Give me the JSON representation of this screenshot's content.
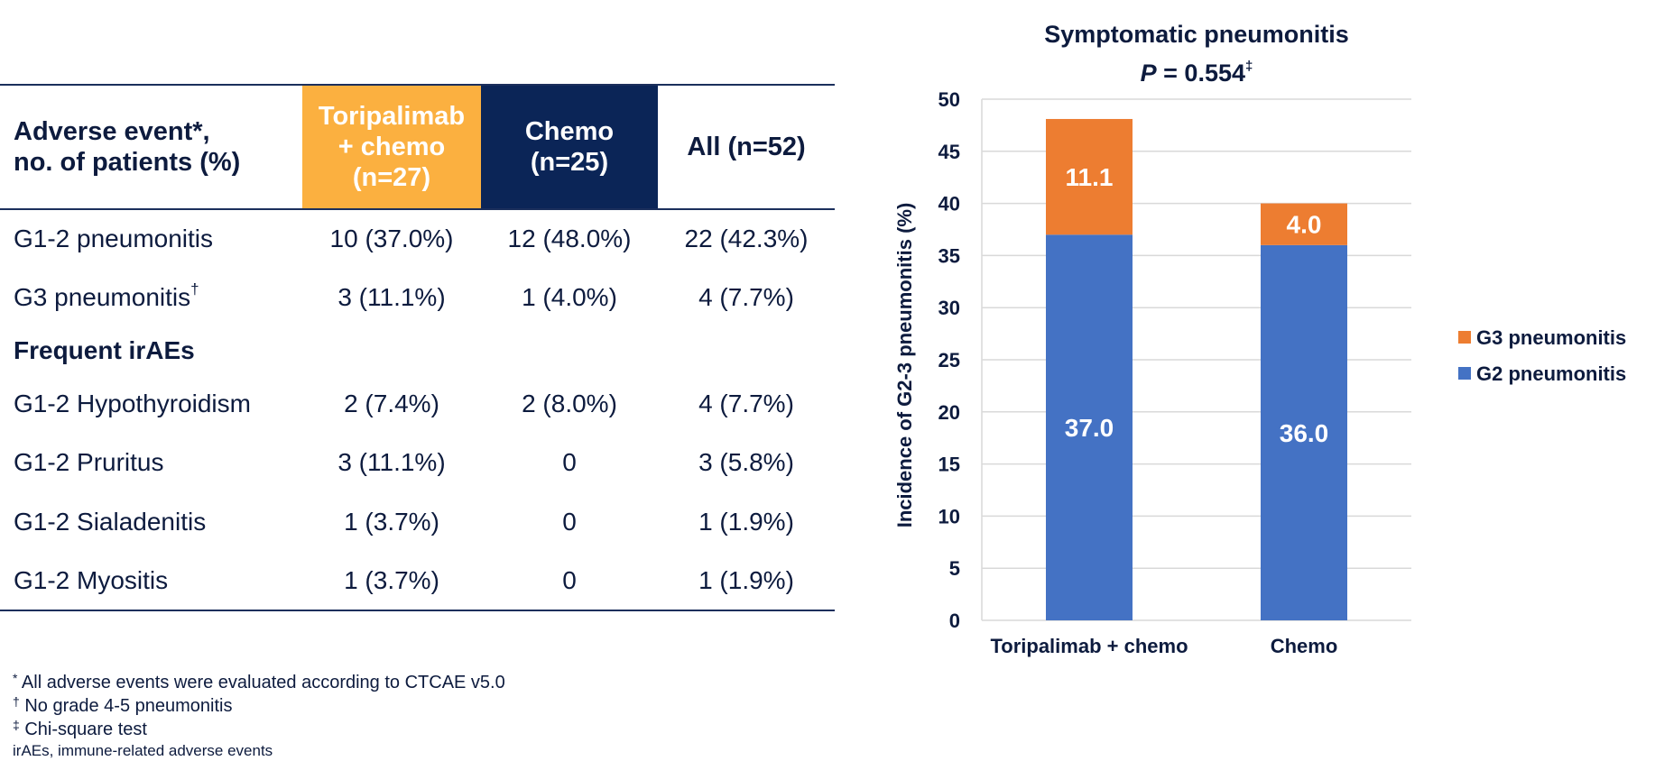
{
  "table": {
    "header": {
      "col1_line1": "Adverse event*,",
      "col1_line2": "no. of patients (%)",
      "col2_line1": "Toripalimab",
      "col2_line2": "+ chemo",
      "col2_line3": "(n=27)",
      "col3_line1": "Chemo",
      "col3_line2": "(n=25)",
      "col4": "All (n=52)"
    },
    "rows": [
      {
        "label": "G1-2 pneumonitis",
        "sup": "",
        "tor": "10 (37.0%)",
        "chemo": "12 (48.0%)",
        "all": "22 (42.3%)"
      },
      {
        "label": "G3 pneumonitis",
        "sup": "†",
        "tor": "3 (11.1%)",
        "chemo": "1 (4.0%)",
        "all": "4 (7.7%)"
      }
    ],
    "section_title": "Frequent irAEs",
    "rows2": [
      {
        "label": "G1-2 Hypothyroidism",
        "tor": "2 (7.4%)",
        "chemo": "2 (8.0%)",
        "all": "4 (7.7%)"
      },
      {
        "label": "G1-2 Pruritus",
        "tor": "3 (11.1%)",
        "chemo": "0",
        "all": "3 (5.8%)"
      },
      {
        "label": "G1-2 Sialadenitis",
        "tor": "1 (3.7%)",
        "chemo": "0",
        "all": "1 (1.9%)"
      },
      {
        "label": "G1-2 Myositis",
        "tor": "1 (3.7%)",
        "chemo": "0",
        "all": "1 (1.9%)"
      }
    ],
    "colors": {
      "toripalimab_header": "#fbb040",
      "chemo_header": "#0b2557",
      "rule": "#1b2f5c"
    }
  },
  "footnotes": [
    {
      "mark": "*",
      "text": " All adverse events were evaluated according to CTCAE v5.0"
    },
    {
      "mark": "†",
      "text": " No grade 4-5 pneumonitis"
    },
    {
      "mark": "‡",
      "text": " Chi-square test"
    }
  ],
  "abbreviation": "irAEs, immune-related adverse events",
  "chart_data": {
    "type": "bar",
    "stacked": true,
    "title": "Symptomatic pneumonitis",
    "subtitle_italic": "P",
    "subtitle_rest": " = 0.554",
    "subtitle_sup": "‡",
    "ylabel": "Incidence of G2-3 pneumonitis (%)",
    "xlabel": "",
    "ylim": [
      0,
      50
    ],
    "yticks": [
      "0",
      "5",
      "10",
      "15",
      "20",
      "25",
      "30",
      "35",
      "40",
      "45",
      "50"
    ],
    "grid": true,
    "legend_position": "right",
    "categories": [
      "Toripalimab + chemo",
      "Chemo"
    ],
    "series": [
      {
        "name": "G2 pneumonitis",
        "values": [
          37.0,
          36.0
        ],
        "labels": [
          "37.0",
          "36.0"
        ],
        "color": "#4472c4"
      },
      {
        "name": "G3 pneumonitis",
        "values": [
          11.1,
          4.0
        ],
        "labels": [
          "11.1",
          "4.0"
        ],
        "color": "#ed7d31"
      }
    ],
    "legend_order": [
      "G3 pneumonitis",
      "G2 pneumonitis"
    ]
  }
}
